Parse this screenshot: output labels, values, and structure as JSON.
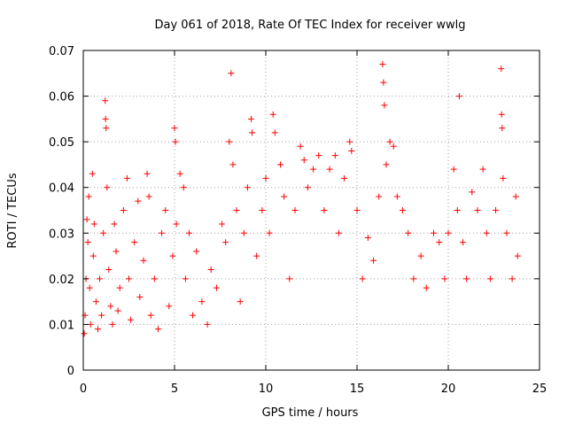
{
  "chart_data": {
    "type": "scatter",
    "title": "Day 061 of 2018, Rate Of TEC Index for receiver wwlg",
    "xlabel": "GPS time / hours",
    "ylabel": "ROTI / TECUs",
    "xlim": [
      0,
      25
    ],
    "ylim": [
      0,
      0.07
    ],
    "xticks": [
      0,
      5,
      10,
      15,
      20,
      25
    ],
    "yticks": [
      0,
      0.01,
      0.02,
      0.03,
      0.04,
      0.05,
      0.06,
      0.07
    ],
    "xtick_labels": [
      "0",
      "5",
      "10",
      "15",
      "20",
      "25"
    ],
    "ytick_labels": [
      "0",
      "0.01",
      "0.02",
      "0.03",
      "0.04",
      "0.05",
      "0.06",
      "0.07"
    ],
    "grid": true,
    "marker": "+",
    "color": "#ff0000",
    "series": [
      {
        "name": "ROTI",
        "points": [
          [
            0.05,
            0.008
          ],
          [
            0.1,
            0.012
          ],
          [
            0.15,
            0.02
          ],
          [
            0.2,
            0.033
          ],
          [
            0.25,
            0.028
          ],
          [
            0.3,
            0.038
          ],
          [
            0.35,
            0.018
          ],
          [
            0.4,
            0.01
          ],
          [
            0.5,
            0.043
          ],
          [
            0.55,
            0.025
          ],
          [
            0.6,
            0.032
          ],
          [
            0.7,
            0.015
          ],
          [
            0.8,
            0.009
          ],
          [
            0.9,
            0.02
          ],
          [
            1.0,
            0.012
          ],
          [
            1.1,
            0.03
          ],
          [
            1.2,
            0.059
          ],
          [
            1.22,
            0.055
          ],
          [
            1.25,
            0.053
          ],
          [
            1.3,
            0.04
          ],
          [
            1.4,
            0.022
          ],
          [
            1.5,
            0.014
          ],
          [
            1.6,
            0.01
          ],
          [
            1.7,
            0.032
          ],
          [
            1.8,
            0.026
          ],
          [
            1.9,
            0.013
          ],
          [
            2.0,
            0.018
          ],
          [
            2.2,
            0.035
          ],
          [
            2.4,
            0.042
          ],
          [
            2.5,
            0.02
          ],
          [
            2.6,
            0.011
          ],
          [
            2.8,
            0.028
          ],
          [
            3.0,
            0.037
          ],
          [
            3.1,
            0.016
          ],
          [
            3.3,
            0.024
          ],
          [
            3.5,
            0.043
          ],
          [
            3.6,
            0.038
          ],
          [
            3.7,
            0.012
          ],
          [
            3.9,
            0.02
          ],
          [
            4.1,
            0.009
          ],
          [
            4.3,
            0.03
          ],
          [
            4.5,
            0.035
          ],
          [
            4.7,
            0.014
          ],
          [
            4.9,
            0.025
          ],
          [
            5.0,
            0.053
          ],
          [
            5.05,
            0.05
          ],
          [
            5.1,
            0.032
          ],
          [
            5.3,
            0.043
          ],
          [
            5.5,
            0.04
          ],
          [
            5.6,
            0.02
          ],
          [
            5.8,
            0.03
          ],
          [
            6.0,
            0.012
          ],
          [
            6.2,
            0.026
          ],
          [
            6.5,
            0.015
          ],
          [
            6.8,
            0.01
          ],
          [
            7.0,
            0.022
          ],
          [
            7.3,
            0.018
          ],
          [
            7.6,
            0.032
          ],
          [
            7.8,
            0.028
          ],
          [
            8.0,
            0.05
          ],
          [
            8.1,
            0.065
          ],
          [
            8.2,
            0.045
          ],
          [
            8.4,
            0.035
          ],
          [
            8.6,
            0.015
          ],
          [
            8.8,
            0.03
          ],
          [
            9.0,
            0.04
          ],
          [
            9.2,
            0.055
          ],
          [
            9.25,
            0.052
          ],
          [
            9.5,
            0.025
          ],
          [
            9.8,
            0.035
          ],
          [
            10.0,
            0.042
          ],
          [
            10.2,
            0.03
          ],
          [
            10.4,
            0.056
          ],
          [
            10.5,
            0.052
          ],
          [
            10.8,
            0.045
          ],
          [
            11.0,
            0.038
          ],
          [
            11.3,
            0.02
          ],
          [
            11.6,
            0.035
          ],
          [
            11.9,
            0.049
          ],
          [
            12.1,
            0.046
          ],
          [
            12.3,
            0.04
          ],
          [
            12.6,
            0.044
          ],
          [
            12.9,
            0.047
          ],
          [
            13.2,
            0.035
          ],
          [
            13.5,
            0.044
          ],
          [
            13.8,
            0.047
          ],
          [
            14.0,
            0.03
          ],
          [
            14.3,
            0.042
          ],
          [
            14.6,
            0.05
          ],
          [
            14.7,
            0.048
          ],
          [
            15.0,
            0.035
          ],
          [
            15.3,
            0.02
          ],
          [
            15.6,
            0.029
          ],
          [
            15.9,
            0.024
          ],
          [
            16.2,
            0.038
          ],
          [
            16.4,
            0.067
          ],
          [
            16.45,
            0.063
          ],
          [
            16.5,
            0.058
          ],
          [
            16.6,
            0.045
          ],
          [
            16.8,
            0.05
          ],
          [
            17.0,
            0.049
          ],
          [
            17.2,
            0.038
          ],
          [
            17.5,
            0.035
          ],
          [
            17.8,
            0.03
          ],
          [
            18.1,
            0.02
          ],
          [
            18.5,
            0.025
          ],
          [
            18.8,
            0.018
          ],
          [
            19.2,
            0.03
          ],
          [
            19.5,
            0.028
          ],
          [
            19.8,
            0.02
          ],
          [
            20.0,
            0.03
          ],
          [
            20.3,
            0.044
          ],
          [
            20.5,
            0.035
          ],
          [
            20.6,
            0.06
          ],
          [
            20.8,
            0.028
          ],
          [
            21.0,
            0.02
          ],
          [
            21.3,
            0.039
          ],
          [
            21.6,
            0.035
          ],
          [
            21.9,
            0.044
          ],
          [
            22.1,
            0.03
          ],
          [
            22.3,
            0.02
          ],
          [
            22.6,
            0.035
          ],
          [
            22.9,
            0.066
          ],
          [
            22.92,
            0.056
          ],
          [
            22.95,
            0.053
          ],
          [
            23.0,
            0.042
          ],
          [
            23.2,
            0.03
          ],
          [
            23.5,
            0.02
          ],
          [
            23.7,
            0.038
          ],
          [
            23.8,
            0.025
          ]
        ]
      }
    ]
  }
}
